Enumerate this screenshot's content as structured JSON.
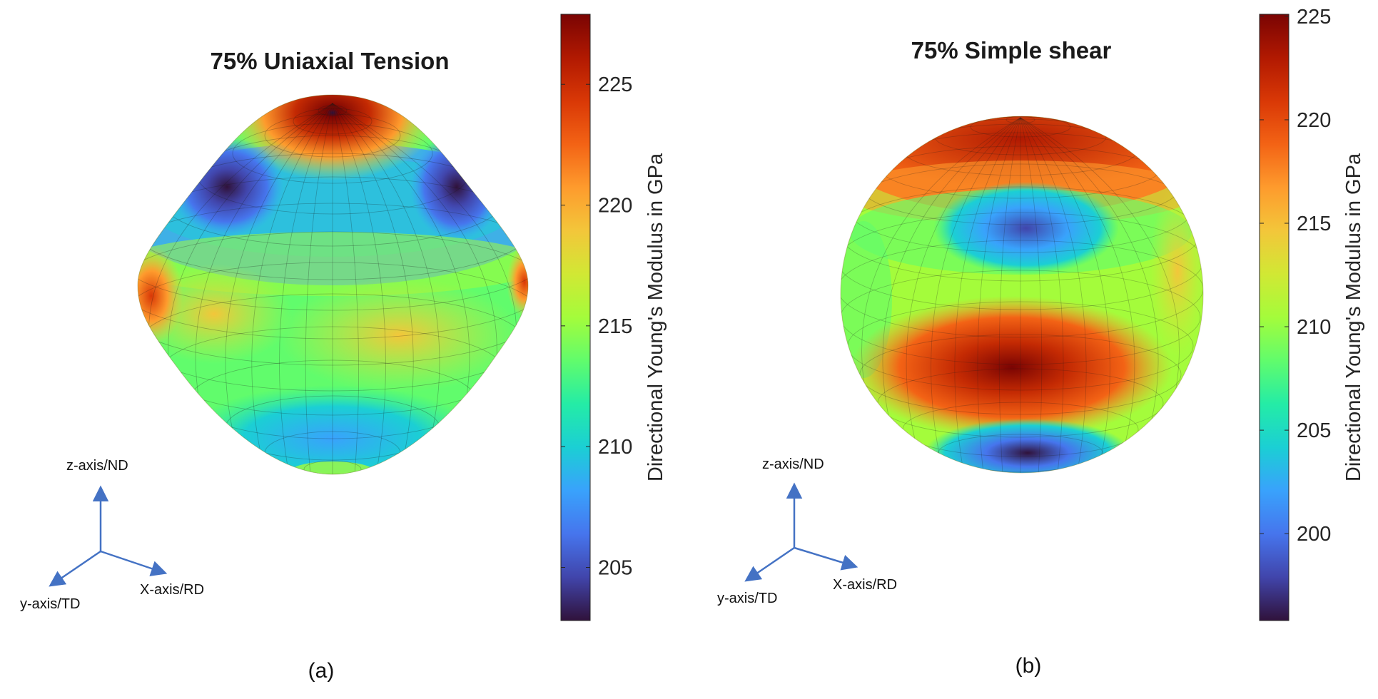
{
  "panels": [
    {
      "id": "a",
      "title": "75% Uniaxial Tension",
      "caption": "(a)",
      "colorbar": {
        "label": "Directional Young's Modulus in GPa",
        "min": 202.8,
        "max": 227.9,
        "ticks": [
          205,
          210,
          215,
          220,
          225
        ]
      },
      "axes": {
        "z": "z-axis/ND",
        "y": "y-axis/TD",
        "x": "X-axis/RD"
      }
    },
    {
      "id": "b",
      "title": "75% Simple shear",
      "caption": "(b)",
      "colorbar": {
        "label": "Directional Young's Modulus in GPa",
        "min": 195.8,
        "max": 225.1,
        "ticks": [
          200,
          205,
          210,
          215,
          220,
          225
        ]
      },
      "axes": {
        "z": "z-axis/ND",
        "y": "y-axis/TD",
        "x": "X-axis/RD"
      }
    }
  ],
  "colors": {
    "axis_arrow": "#4472c4",
    "colormap": [
      "#30123b",
      "#4145ab",
      "#4675ed",
      "#39a2fc",
      "#1bcfd4",
      "#24eca6",
      "#61fc6c",
      "#a4fc3b",
      "#d1e834",
      "#f3c63a",
      "#fe9b2d",
      "#f36315",
      "#d93806",
      "#b11901",
      "#7a0403"
    ]
  }
}
